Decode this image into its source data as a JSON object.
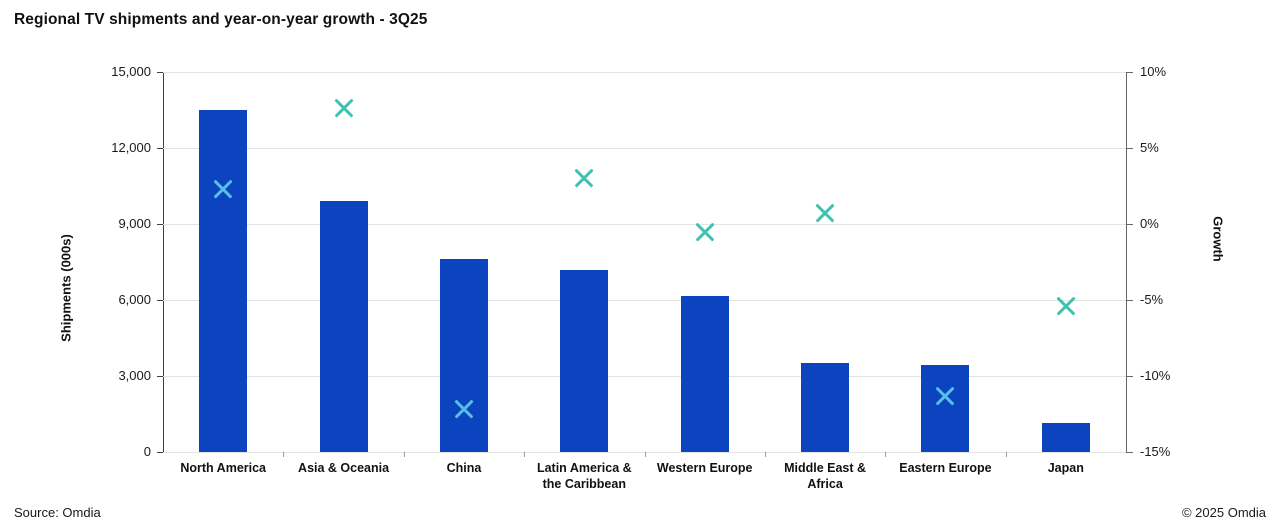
{
  "title": "Regional TV shipments and year-on-year growth - 3Q25",
  "footer": {
    "source": "Source: Omdia",
    "copyright": "© 2025 Omdia"
  },
  "colors": {
    "bar": "#0B44BE",
    "marker": "#3FC2B2",
    "marker_on_bar": "#56BEE9",
    "grid": "#E4E4E4",
    "left_axis": "#404040",
    "right_axis": "#666666"
  },
  "chart_data": {
    "type": "bar",
    "title": "Regional TV shipments and year-on-year growth - 3Q25",
    "categories": [
      "North America",
      "Asia & Oceania",
      "China",
      "Latin America & the Caribbean",
      "Western Europe",
      "Middle East & Africa",
      "Eastern Europe",
      "Japan"
    ],
    "series": [
      {
        "name": "Shipments (000s)",
        "type": "bar",
        "axis": "left",
        "values": [
          13500,
          9900,
          7600,
          7200,
          6150,
          3500,
          3450,
          1130
        ]
      },
      {
        "name": "Growth",
        "type": "scatter",
        "marker": "x",
        "axis": "right",
        "values": [
          2.3,
          7.6,
          -12.2,
          3.0,
          -0.5,
          0.7,
          -11.3,
          -5.4
        ]
      }
    ],
    "left_axis": {
      "label": "Shipments (000s)",
      "min": 0,
      "max": 15000,
      "tick_values": [
        15000,
        12000,
        9000,
        6000,
        3000,
        0
      ],
      "tick_labels": [
        "15,000",
        "12,000",
        "9,000",
        "6,000",
        "3,000",
        "0"
      ]
    },
    "right_axis": {
      "label": "Growth",
      "min": -15,
      "max": 10,
      "tick_values": [
        10,
        5,
        0,
        -5,
        -10,
        -15
      ],
      "tick_labels": [
        "10%",
        "5%",
        "0%",
        "-5%",
        "-10%",
        "-15%"
      ]
    },
    "grid": true,
    "legend": "none"
  }
}
